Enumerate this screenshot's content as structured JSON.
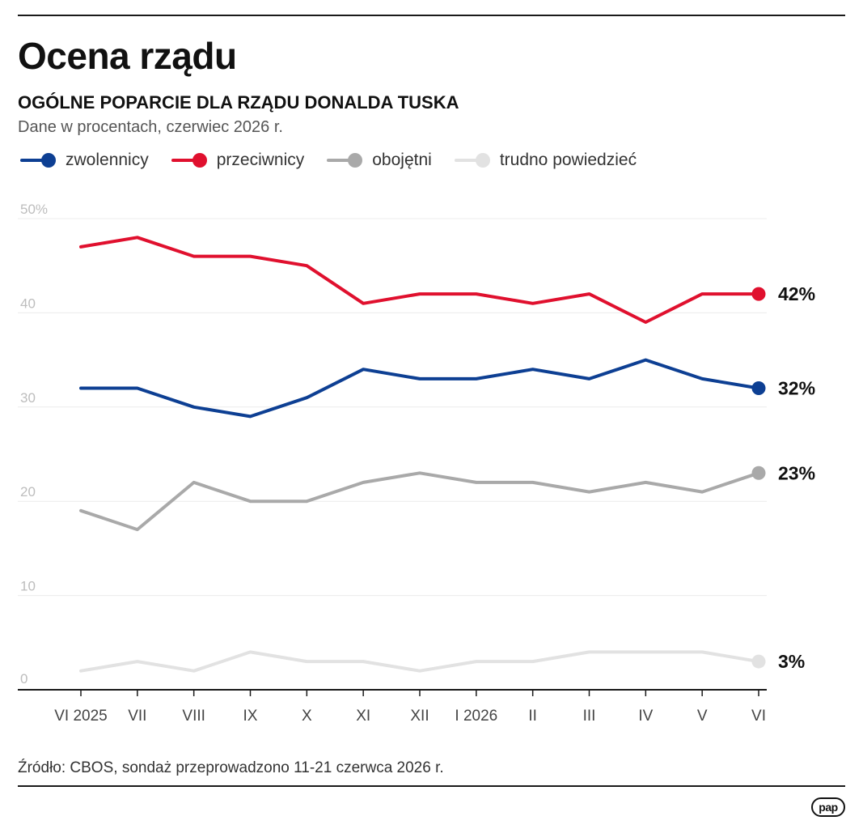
{
  "header": {
    "title": "Ocena rządu",
    "subtitle": "OGÓLNE POPARCIE DLA RZĄDU DONALDA TUSKA",
    "note": "Dane w procentach, czerwiec 2026 r."
  },
  "legend": [
    {
      "label": "zwolennicy",
      "color": "#0d3f93"
    },
    {
      "label": "przeciwnicy",
      "color": "#e0102e"
    },
    {
      "label": "obojętni",
      "color": "#a9a9a9"
    },
    {
      "label": "trudno powiedzieć",
      "color": "#e2e2e2"
    }
  ],
  "chart_data": {
    "type": "line",
    "title": "OGÓLNE POPARCIE DLA RZĄDU DONALDA TUSKA",
    "xlabel": "",
    "ylabel": "",
    "ylim": [
      0,
      50
    ],
    "y_ticks": [
      {
        "value": 0,
        "label": "0"
      },
      {
        "value": 10,
        "label": "10"
      },
      {
        "value": 20,
        "label": "20"
      },
      {
        "value": 30,
        "label": "30"
      },
      {
        "value": 40,
        "label": "40"
      },
      {
        "value": 50,
        "label": "50%"
      }
    ],
    "grid": true,
    "categories": [
      "VI 2025",
      "VII",
      "VIII",
      "IX",
      "X",
      "XI",
      "XII",
      "I 2026",
      "II",
      "III",
      "IV",
      "V",
      "VI"
    ],
    "series": [
      {
        "name": "zwolennicy",
        "color": "#0d3f93",
        "values": [
          32,
          32,
          30,
          29,
          31,
          34,
          33,
          33,
          34,
          33,
          35,
          33,
          32
        ],
        "end_label": "32%"
      },
      {
        "name": "przeciwnicy",
        "color": "#e0102e",
        "values": [
          47,
          48,
          46,
          46,
          45,
          41,
          42,
          42,
          41,
          42,
          39,
          42,
          42
        ],
        "end_label": "42%"
      },
      {
        "name": "obojętni",
        "color": "#a9a9a9",
        "values": [
          19,
          17,
          22,
          20,
          20,
          22,
          23,
          22,
          22,
          21,
          22,
          21,
          23
        ],
        "end_label": "23%"
      },
      {
        "name": "trudno powiedzieć",
        "color": "#e2e2e2",
        "values": [
          2,
          3,
          2,
          4,
          3,
          3,
          2,
          3,
          3,
          4,
          4,
          4,
          3
        ],
        "end_label": "3%"
      }
    ]
  },
  "footer": {
    "source": "Źródło: CBOS, sondaż przeprowadzono 11-21 czerwca 2026 r.",
    "logo_text": "pap"
  }
}
